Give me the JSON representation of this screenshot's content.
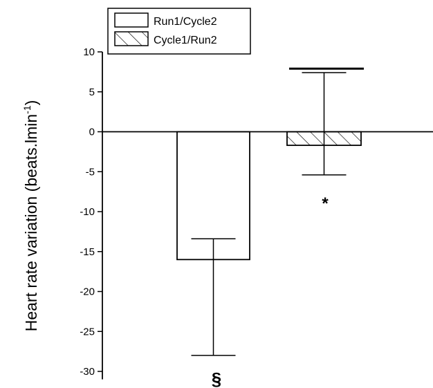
{
  "chart_data": {
    "type": "bar",
    "title": "",
    "xlabel": "",
    "ylabel": "Heart rate variation (beats.lmin",
    "ylabel_superscript": "-1",
    "ylabel_close": ")",
    "ylim": [
      -31,
      10
    ],
    "yticks": [
      10,
      5,
      0,
      -5,
      -10,
      -15,
      -20,
      -25,
      -30
    ],
    "grid": false,
    "zero_line": true,
    "legend_position": "top-left",
    "legend_style": "boxed",
    "series": [
      {
        "name": "Run1/Cycle2",
        "value": -16,
        "error_upper": -13.4,
        "error_lower": -28,
        "fill": "none",
        "annotation": "§"
      },
      {
        "name": "Cycle1/Run2",
        "value": -1.7,
        "error_upper": 7.4,
        "error_lower": -5.4,
        "fill": "diagonal-hatch",
        "annotation": "*"
      }
    ],
    "reference_line": {
      "value": 7.9,
      "spans_series": "Cycle1/Run2"
    },
    "colors": {
      "stroke": "#000000",
      "background": "#ffffff"
    }
  }
}
